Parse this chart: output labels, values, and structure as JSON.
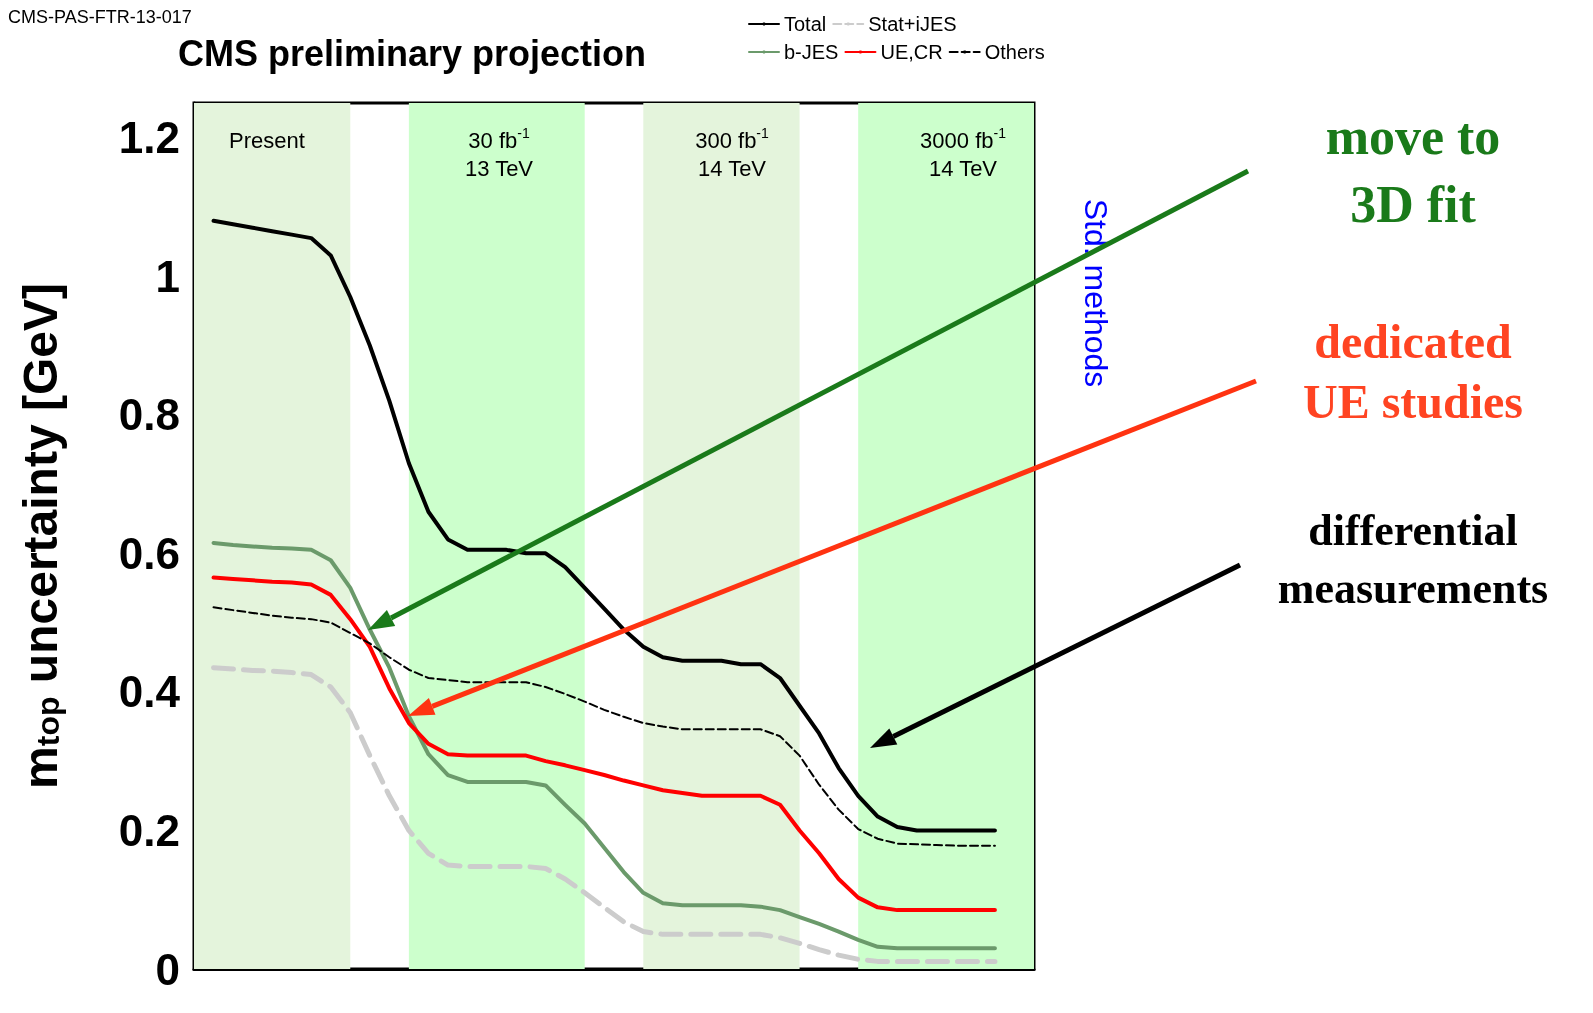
{
  "chart_data": {
    "type": "line",
    "title": "CMS preliminary projection",
    "ylabel": "m$_{top}$ uncertainty [GeV]",
    "categories": [
      null,
      null,
      null,
      null,
      null,
      null,
      null,
      null,
      null,
      null,
      null,
      null,
      null,
      null,
      null,
      null,
      null,
      null,
      null,
      null,
      null,
      null,
      null,
      null,
      null,
      null,
      null,
      null,
      null,
      null,
      null,
      null,
      null,
      null,
      null,
      null,
      null,
      null,
      null,
      null,
      null,
      null,
      null,
      null
    ],
    "series": [
      {
        "name": "Total",
        "color": "#000000",
        "line_style": "solid",
        "values": [
          null,
          1.08,
          1.075,
          1.07,
          1.065,
          1.06,
          1.055,
          1.03,
          0.97,
          0.9,
          0.82,
          0.73,
          0.66,
          0.62,
          0.605,
          0.605,
          0.605,
          0.6,
          0.6,
          0.58,
          0.55,
          0.52,
          0.49,
          0.465,
          0.45,
          0.445,
          0.445,
          0.445,
          0.44,
          0.44,
          0.42,
          0.38,
          0.34,
          0.29,
          0.25,
          0.22,
          0.205,
          0.2,
          0.2,
          0.2,
          0.2,
          0.2,
          null,
          null
        ]
      },
      {
        "name": "Stat+iJES",
        "color": "#cccccc",
        "line_style": "dashed",
        "values": [
          null,
          0.435,
          0.433,
          0.431,
          0.43,
          0.428,
          0.425,
          0.407,
          0.37,
          0.308,
          0.25,
          0.2,
          0.167,
          0.15,
          0.148,
          0.148,
          0.148,
          0.148,
          0.145,
          0.13,
          0.11,
          0.089,
          0.068,
          0.054,
          0.05,
          0.05,
          0.05,
          0.05,
          0.05,
          0.05,
          0.045,
          0.037,
          0.028,
          0.02,
          0.014,
          0.011,
          0.011,
          0.011,
          0.011,
          0.011,
          0.011,
          0.011,
          null,
          null
        ]
      },
      {
        "name": "b-JES",
        "color": "#6b9a6b",
        "line_style": "solid",
        "values": [
          null,
          0.615,
          0.612,
          0.61,
          0.608,
          0.607,
          0.605,
          0.59,
          0.55,
          0.49,
          0.435,
          0.365,
          0.31,
          0.28,
          0.27,
          0.27,
          0.27,
          0.27,
          0.265,
          0.237,
          0.21,
          0.175,
          0.14,
          0.11,
          0.095,
          0.092,
          0.092,
          0.092,
          0.092,
          0.09,
          0.085,
          0.075,
          0.065,
          0.054,
          0.042,
          0.032,
          0.03,
          0.03,
          0.03,
          0.03,
          0.03,
          0.03,
          null,
          null
        ]
      },
      {
        "name": "UE,CR",
        "color": "#ff0000",
        "line_style": "solid",
        "values": [
          null,
          0.565,
          0.563,
          0.561,
          0.559,
          0.558,
          0.555,
          0.54,
          0.505,
          0.465,
          0.405,
          0.355,
          0.325,
          0.31,
          0.308,
          0.308,
          0.308,
          0.308,
          0.3,
          0.294,
          0.287,
          0.28,
          0.272,
          0.265,
          0.258,
          0.254,
          0.25,
          0.25,
          0.25,
          0.25,
          0.237,
          0.2,
          0.167,
          0.13,
          0.103,
          0.089,
          0.085,
          0.085,
          0.085,
          0.085,
          0.085,
          0.085,
          null,
          null
        ]
      },
      {
        "name": "Others",
        "color": "#000000",
        "line_style": "dashed",
        "values": [
          null,
          0.522,
          0.518,
          0.514,
          0.51,
          0.507,
          0.505,
          0.5,
          0.485,
          0.47,
          0.45,
          0.432,
          0.42,
          0.417,
          0.414,
          0.414,
          0.414,
          0.414,
          0.407,
          0.397,
          0.386,
          0.374,
          0.364,
          0.355,
          0.35,
          0.346,
          0.346,
          0.346,
          0.346,
          0.346,
          0.336,
          0.308,
          0.266,
          0.23,
          0.202,
          0.188,
          0.181,
          0.18,
          0.179,
          0.178,
          0.178,
          0.178,
          null,
          null
        ]
      }
    ],
    "ylim": [
      0,
      1.25
    ],
    "yticks": [
      0,
      0.2,
      0.4,
      0.6,
      0.8,
      1,
      1.2
    ],
    "annotations": [
      "CMS-PAS-FTR-13-017",
      "Std. methods",
      "move to\n3D fit",
      "dedicated\nUE studies",
      "differential\nmeasurements",
      "Present",
      "30 fb$^{-1}$\n13 TeV",
      "300 fb$^{-1}$\n14 TeV",
      "3000 fb$^{-1}$\n14 TeV"
    ],
    "legend": "top right",
    "grid": false,
    "marker": "none",
    "tick_labels": "y"
  }
}
